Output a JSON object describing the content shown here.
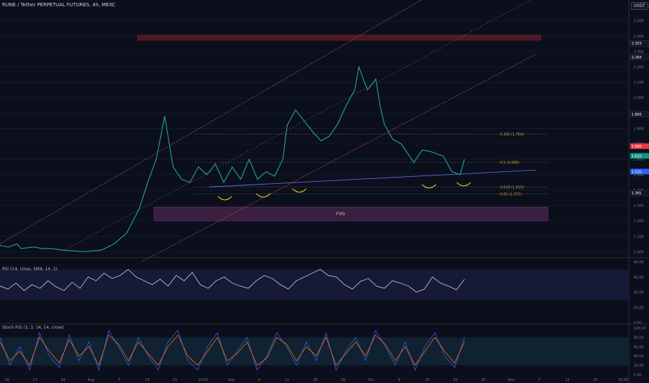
{
  "header": {
    "title": "RUNE / Tether PERPETUAL FUTURES, 4h, MEXC",
    "currency": "USDT"
  },
  "chart_data": {
    "type": "line",
    "title": "RUNE / Tether PERPETUAL FUTURES, 4h, MEXC",
    "main": {
      "ylim": [
        0.97,
        2.58
      ],
      "yticks": [
        "2.500",
        "2.400",
        "2.300",
        "2.200",
        "2.100",
        "2.000",
        "1.900",
        "1.800",
        "1.700",
        "1.600",
        "1.500",
        "1.400",
        "1.300",
        "1.200",
        "1.100",
        "1.000"
      ],
      "close_series": [
        [
          0,
          1.04
        ],
        [
          0.02,
          1.03
        ],
        [
          0.04,
          1.05
        ],
        [
          0.05,
          1.02
        ],
        [
          0.08,
          1.03
        ],
        [
          0.1,
          1.02
        ],
        [
          0.12,
          1.02
        ],
        [
          0.15,
          1.01
        ],
        [
          0.2,
          1.0
        ],
        [
          0.24,
          1.01
        ],
        [
          0.27,
          1.05
        ],
        [
          0.3,
          1.12
        ],
        [
          0.33,
          1.28
        ],
        [
          0.35,
          1.45
        ],
        [
          0.37,
          1.6
        ],
        [
          0.39,
          1.88
        ],
        [
          0.41,
          1.55
        ],
        [
          0.43,
          1.47
        ],
        [
          0.45,
          1.45
        ],
        [
          0.47,
          1.55
        ],
        [
          0.49,
          1.5
        ],
        [
          0.51,
          1.57
        ],
        [
          0.53,
          1.45
        ],
        [
          0.55,
          1.55
        ],
        [
          0.57,
          1.47
        ],
        [
          0.59,
          1.6
        ],
        [
          0.61,
          1.47
        ],
        [
          0.63,
          1.52
        ],
        [
          0.65,
          1.49
        ],
        [
          0.67,
          1.6
        ],
        [
          0.68,
          1.82
        ],
        [
          0.7,
          1.92
        ],
        [
          0.72,
          1.85
        ],
        [
          0.74,
          1.78
        ],
        [
          0.76,
          1.72
        ],
        [
          0.78,
          1.75
        ],
        [
          0.8,
          1.83
        ],
        [
          0.82,
          1.95
        ],
        [
          0.84,
          2.05
        ],
        [
          0.85,
          2.2
        ],
        [
          0.87,
          2.05
        ],
        [
          0.89,
          2.12
        ],
        [
          0.9,
          1.95
        ],
        [
          0.91,
          1.83
        ],
        [
          0.93,
          1.73
        ],
        [
          0.95,
          1.7
        ],
        [
          0.97,
          1.62
        ],
        [
          0.98,
          1.58
        ],
        [
          1.0,
          1.66
        ],
        [
          1.02,
          1.65
        ],
        [
          1.05,
          1.62
        ],
        [
          1.07,
          1.52
        ],
        [
          1.09,
          1.5
        ],
        [
          1.1,
          1.6
        ]
      ],
      "levels": [
        {
          "label": "0.382 (1.764)",
          "value": 1.764
        },
        {
          "label": "0.5 (1.580)",
          "value": 1.58
        },
        {
          "label": "0.618 (1.419)",
          "value": 1.419
        },
        {
          "label": "0.65 (1.375)",
          "value": 1.375
        }
      ],
      "zones": [
        {
          "label": "FVG",
          "from": 1.2,
          "to": 1.29,
          "color": "#5a2a5a"
        },
        {
          "label": "",
          "from": 2.37,
          "to": 2.41,
          "color": "#7a1f2e"
        }
      ],
      "price_labels": [
        {
          "text": "2.353",
          "value": 2.353,
          "color": "#131722"
        },
        {
          "text": "2.264",
          "value": 2.264,
          "color": "#131722"
        },
        {
          "text": "1.893",
          "value": 1.893,
          "color": "#131722"
        },
        {
          "text": "1.685",
          "value": 1.685,
          "color": "#f23645"
        },
        {
          "text": "1.622",
          "value": 1.622,
          "color": "#089981"
        },
        {
          "text": "1.520",
          "value": 1.52,
          "color": "#2962ff"
        },
        {
          "text": "1.381",
          "value": 1.381,
          "color": "#131722"
        }
      ]
    },
    "rsi": {
      "label": "RSI (14, close, SMA, 14, 2)",
      "ylim": [
        0,
        80
      ],
      "yticks": [
        "80.00",
        "60.00",
        "40.00",
        "20.00",
        "0.00"
      ],
      "values": [
        48,
        44,
        52,
        42,
        50,
        45,
        55,
        47,
        42,
        53,
        45,
        60,
        55,
        65,
        58,
        62,
        70,
        60,
        55,
        50,
        57,
        48,
        62,
        55,
        66,
        50,
        45,
        55,
        60,
        52,
        48,
        45,
        55,
        62,
        58,
        50,
        44,
        55,
        60,
        65,
        70,
        62,
        60,
        50,
        44,
        54,
        58,
        48,
        45,
        55,
        52,
        48,
        40,
        44,
        60,
        52,
        48,
        43,
        57
      ]
    },
    "stoch": {
      "label": "Stoch RSI (3, 3, 14, 14, close)",
      "ylim": [
        0,
        100
      ],
      "yticks": [
        "100.00",
        "80.00",
        "60.00",
        "40.00",
        "20.00",
        "0.00"
      ],
      "k": [
        80,
        20,
        60,
        10,
        90,
        40,
        15,
        85,
        30,
        70,
        10,
        95,
        60,
        20,
        80,
        40,
        10,
        70,
        95,
        30,
        10,
        60,
        90,
        20,
        50,
        80,
        10,
        40,
        90,
        60,
        20,
        70,
        30,
        90,
        10,
        50,
        80,
        30,
        95,
        60,
        20,
        70,
        10,
        60,
        90,
        40,
        15,
        80
      ],
      "d": [
        70,
        30,
        50,
        20,
        80,
        50,
        25,
        75,
        40,
        60,
        20,
        85,
        65,
        30,
        70,
        45,
        20,
        60,
        85,
        40,
        20,
        50,
        80,
        30,
        45,
        70,
        20,
        35,
        80,
        65,
        30,
        60,
        40,
        80,
        20,
        45,
        70,
        40,
        85,
        65,
        30,
        60,
        20,
        50,
        80,
        50,
        25,
        70
      ]
    },
    "xticks": [
      "10",
      "17",
      "24",
      "Aug",
      "7",
      "14",
      "21",
      "14:00",
      "Sep",
      "4",
      "11",
      "18",
      "25",
      "Oct",
      "9",
      "16",
      "23",
      "30",
      "Nov",
      "7",
      "13",
      "20",
      "15:00"
    ]
  }
}
